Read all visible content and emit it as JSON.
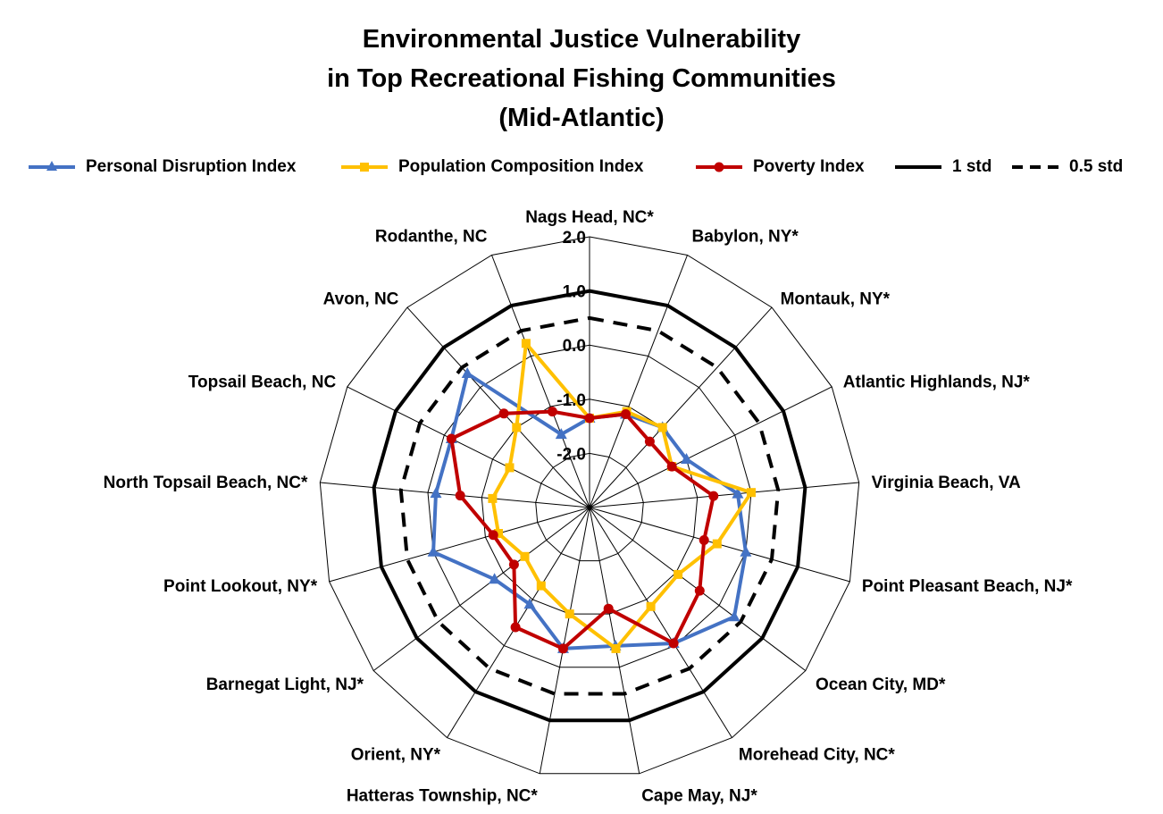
{
  "chart_data": {
    "type": "radar",
    "title_lines": [
      "Environmental Justice Vulnerability",
      "in Top Recreational Fishing Communities",
      "(Mid-Atlantic)"
    ],
    "categories": [
      "Nags Head, NC*",
      "Babylon, NY*",
      "Montauk, NY*",
      "Atlantic Highlands, NJ*",
      "Virginia Beach, VA",
      "Point Pleasant Beach, NJ*",
      "Ocean City, MD*",
      "Morehead City, NC*",
      "Cape May, NJ*",
      "Hatteras Township, NC*",
      "Orient, NY*",
      "Barnegat Light, NJ*",
      "Point Lookout, NY*",
      "North Topsail Beach, NC*",
      "Topsail Beach, NC",
      "Avon, NC",
      "Rodanthe, NC"
    ],
    "radial_axis": {
      "min": -3.0,
      "max": 2.0,
      "tick_labels": [
        "2.0",
        "1.0",
        "0.0",
        "-1.0",
        "-2.0"
      ]
    },
    "series": [
      {
        "name": "Personal Disruption Index",
        "color": "#4472C4",
        "marker": "triangle",
        "values": [
          -1.35,
          -1.15,
          -1.0,
          -1.0,
          -0.25,
          0.0,
          0.35,
          -0.05,
          -0.4,
          -0.35,
          -0.9,
          -0.8,
          0.0,
          -0.15,
          -0.15,
          0.35,
          -1.55
        ]
      },
      {
        "name": "Population Composition Index",
        "color": "#FFC000",
        "marker": "square",
        "values": [
          -1.35,
          -1.1,
          -1.0,
          -1.3,
          0.0,
          -0.55,
          -0.95,
          -0.85,
          -0.35,
          -1.0,
          -1.3,
          -1.5,
          -1.25,
          -1.2,
          -1.35,
          -1.0,
          0.25
        ]
      },
      {
        "name": "Poverty Index",
        "color": "#C00000",
        "marker": "circle",
        "values": [
          -1.35,
          -1.15,
          -1.35,
          -1.3,
          -0.7,
          -0.8,
          -0.45,
          -0.05,
          -1.1,
          -0.35,
          -0.4,
          -1.25,
          -1.15,
          -0.6,
          -0.15,
          -0.65,
          -1.1
        ]
      },
      {
        "name": "1 std",
        "color": "#000000",
        "line": "solid",
        "values": [
          1.0,
          1.0,
          1.0,
          1.0,
          1.0,
          1.0,
          1.0,
          1.0,
          1.0,
          1.0,
          1.0,
          1.0,
          1.0,
          1.0,
          1.0,
          1.0,
          1.0
        ]
      },
      {
        "name": "0.5 std",
        "color": "#000000",
        "line": "dashed",
        "values": [
          0.5,
          0.5,
          0.5,
          0.5,
          0.5,
          0.5,
          0.5,
          0.5,
          0.5,
          0.5,
          0.5,
          0.5,
          0.5,
          0.5,
          0.5,
          0.5,
          0.5
        ]
      }
    ],
    "legend_position": "top",
    "grid": true
  }
}
